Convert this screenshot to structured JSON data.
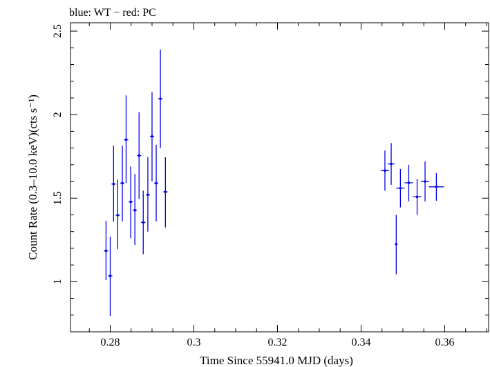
{
  "chart_data": {
    "type": "scatter",
    "title": "blue: WT − red: PC",
    "xlabel": "Time Since 55941.0 MJD (days)",
    "ylabel": "Count Rate (0.3–10.0 keV)(cts s⁻¹)",
    "xlim": [
      0.2705,
      0.3705
    ],
    "ylim": [
      0.7,
      2.55
    ],
    "xticks": [
      0.28,
      0.3,
      0.32,
      0.34,
      0.36
    ],
    "xtick_labels": [
      "0.28",
      "0.3",
      "0.32",
      "0.34",
      "0.36"
    ],
    "yticks": [
      1.0,
      1.5,
      2.0,
      2.5
    ],
    "ytick_labels": [
      "1",
      "1.5",
      "2",
      "2.5"
    ],
    "grid": false,
    "series": [
      {
        "color": "#0000ee",
        "points": [
          {
            "x": 0.279,
            "y": 1.185,
            "xerr": 0.0005,
            "ylo": 1.01,
            "yhi": 1.365
          },
          {
            "x": 0.28,
            "y": 1.035,
            "xerr": 0.0005,
            "ylo": 0.795,
            "yhi": 1.27
          },
          {
            "x": 0.2808,
            "y": 1.585,
            "xerr": 0.0005,
            "ylo": 1.36,
            "yhi": 1.815
          },
          {
            "x": 0.2818,
            "y": 1.398,
            "xerr": 0.0005,
            "ylo": 1.195,
            "yhi": 1.61
          },
          {
            "x": 0.2829,
            "y": 1.59,
            "xerr": 0.0005,
            "ylo": 1.36,
            "yhi": 1.815
          },
          {
            "x": 0.2838,
            "y": 1.85,
            "xerr": 0.0005,
            "ylo": 1.59,
            "yhi": 2.115
          },
          {
            "x": 0.2849,
            "y": 1.478,
            "xerr": 0.0005,
            "ylo": 1.26,
            "yhi": 1.69
          },
          {
            "x": 0.2859,
            "y": 1.428,
            "xerr": 0.0005,
            "ylo": 1.22,
            "yhi": 1.645
          },
          {
            "x": 0.2869,
            "y": 1.755,
            "xerr": 0.0005,
            "ylo": 1.495,
            "yhi": 2.015
          },
          {
            "x": 0.2879,
            "y": 1.355,
            "xerr": 0.0005,
            "ylo": 1.165,
            "yhi": 1.545
          },
          {
            "x": 0.289,
            "y": 1.52,
            "xerr": 0.0005,
            "ylo": 1.3,
            "yhi": 1.745
          },
          {
            "x": 0.29,
            "y": 1.87,
            "xerr": 0.0005,
            "ylo": 1.6,
            "yhi": 2.135
          },
          {
            "x": 0.291,
            "y": 1.59,
            "xerr": 0.0005,
            "ylo": 1.36,
            "yhi": 1.82
          },
          {
            "x": 0.292,
            "y": 2.095,
            "xerr": 0.0005,
            "ylo": 1.8,
            "yhi": 2.39
          },
          {
            "x": 0.2932,
            "y": 1.538,
            "xerr": 0.0005,
            "ylo": 1.325,
            "yhi": 1.745
          },
          {
            "x": 0.3457,
            "y": 1.665,
            "xerr": 0.001,
            "ylo": 1.545,
            "yhi": 1.785
          },
          {
            "x": 0.3472,
            "y": 1.705,
            "xerr": 0.0008,
            "ylo": 1.58,
            "yhi": 1.83
          },
          {
            "x": 0.3484,
            "y": 1.225,
            "xerr": 0.0003,
            "ylo": 1.045,
            "yhi": 1.4
          },
          {
            "x": 0.3494,
            "y": 1.56,
            "xerr": 0.001,
            "ylo": 1.445,
            "yhi": 1.675
          },
          {
            "x": 0.3514,
            "y": 1.592,
            "xerr": 0.001,
            "ylo": 1.48,
            "yhi": 1.7
          },
          {
            "x": 0.3534,
            "y": 1.508,
            "xerr": 0.001,
            "ylo": 1.4,
            "yhi": 1.615
          },
          {
            "x": 0.3553,
            "y": 1.6,
            "xerr": 0.001,
            "ylo": 1.48,
            "yhi": 1.72
          },
          {
            "x": 0.358,
            "y": 1.568,
            "xerr": 0.0018,
            "ylo": 1.485,
            "yhi": 1.65
          }
        ]
      }
    ]
  }
}
